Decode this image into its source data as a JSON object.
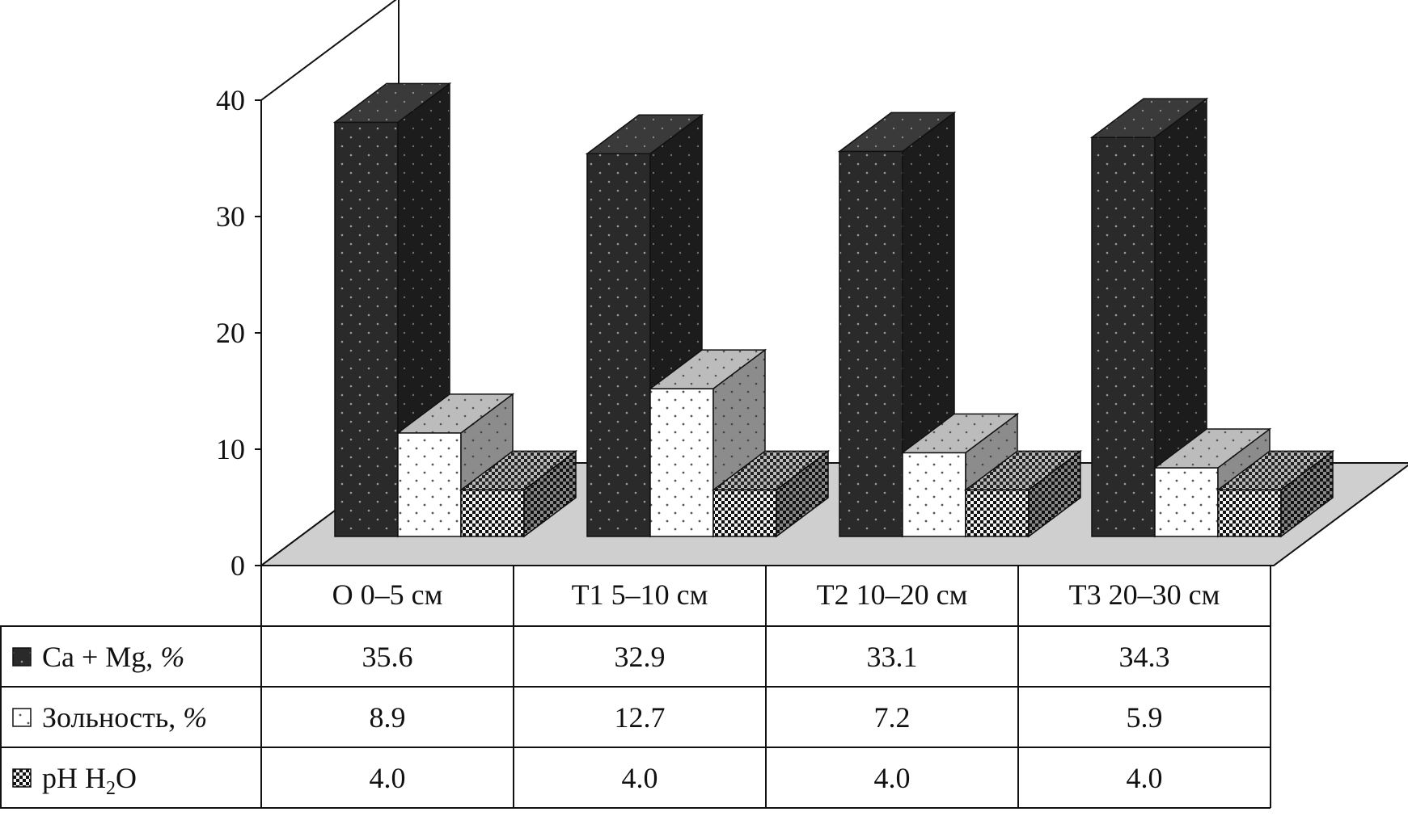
{
  "chart_data": {
    "type": "bar",
    "style": "3d-clustered-with-data-table",
    "categories": [
      "O 0–5 см",
      "T1 5–10 см",
      "T2 10–20 см",
      "T3 20–30 см"
    ],
    "series": [
      {
        "name": "Ca + Mg, %",
        "name_parts": [
          {
            "t": "Ca + Mg, "
          },
          {
            "t": "%",
            "italic": true
          }
        ],
        "values": [
          35.6,
          32.9,
          33.1,
          34.3
        ],
        "value_labels": [
          "35.6",
          "32.9",
          "33.1",
          "34.3"
        ],
        "pattern": "dark-dots"
      },
      {
        "name": "Зольность, %",
        "name_parts": [
          {
            "t": "Зольность, "
          },
          {
            "t": "%",
            "italic": true
          }
        ],
        "values": [
          8.9,
          12.7,
          7.2,
          5.9
        ],
        "value_labels": [
          "8.9",
          "12.7",
          "7.2",
          "5.9"
        ],
        "pattern": "light-dots"
      },
      {
        "name": "pH H2O",
        "name_parts": [
          {
            "t": "pH H"
          },
          {
            "t": "2",
            "sub": true
          },
          {
            "t": "O"
          }
        ],
        "values": [
          4.0,
          4.0,
          4.0,
          4.0
        ],
        "value_labels": [
          "4.0",
          "4.0",
          "4.0",
          "4.0"
        ],
        "pattern": "checker"
      }
    ],
    "ylim": [
      0,
      40
    ],
    "yticks": [
      0,
      10,
      20,
      30,
      40
    ],
    "ytick_labels": [
      "0",
      "10",
      "20",
      "30",
      "40"
    ],
    "title": "",
    "xlabel": "",
    "ylabel": "",
    "legend": "data-table-left",
    "colors": {
      "dark_face": "#2a2a2a",
      "dark_side": "#1c1c1c",
      "dark_top": "#3a3a3a",
      "light_face": "#ffffff",
      "light_side": "#8c8c8c",
      "light_top": "#bcbcbc",
      "floor": "#cfcfcf",
      "line": "#111111"
    }
  }
}
